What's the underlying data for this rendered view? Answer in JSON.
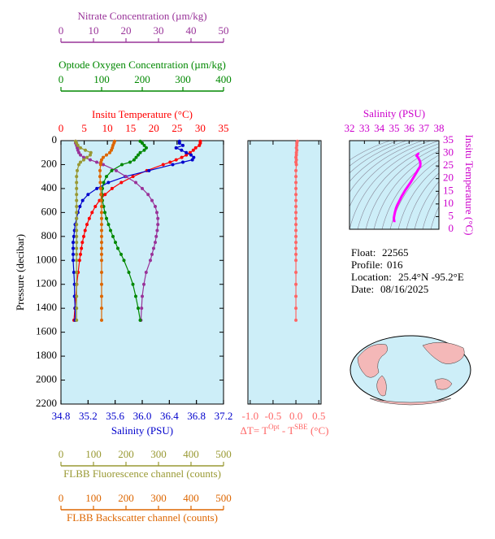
{
  "chart_data": [
    {
      "type": "profile",
      "ylabel": "Pressure (decibar)",
      "ylim": [
        0,
        2200
      ],
      "yticks": [
        0,
        200,
        400,
        600,
        800,
        1000,
        1200,
        1400,
        1600,
        1800,
        2000,
        2200
      ],
      "pressure": [
        5,
        20,
        40,
        60,
        80,
        100,
        120,
        140,
        160,
        180,
        200,
        250,
        300,
        350,
        400,
        450,
        500,
        550,
        600,
        650,
        700,
        750,
        800,
        850,
        900,
        950,
        1000,
        1100,
        1200,
        1300,
        1400,
        1500
      ],
      "axes": [
        {
          "label": "Nitrate Concentration (µm/kg)",
          "color": "#993399",
          "xlim": [
            0,
            50
          ],
          "xticks": [
            0,
            10,
            20,
            30,
            40,
            50
          ]
        },
        {
          "label": "Optode Oxygen Concentration (µm/kg)",
          "color": "#008800",
          "xlim": [
            0,
            400
          ],
          "xticks": [
            0,
            100,
            200,
            300,
            400
          ]
        },
        {
          "label": "Insitu Temperature (°C)",
          "color": "#ff0000",
          "xlim": [
            0,
            35
          ],
          "xticks": [
            0,
            5,
            10,
            15,
            20,
            25,
            30,
            35
          ]
        },
        {
          "label": "Salinity (PSU)",
          "color": "#0000cc",
          "xlim": [
            34.8,
            37.2
          ],
          "xticks": [
            34.8,
            35.2,
            35.6,
            {
              "value": 36,
              "label": "36.0"
            },
            36.4,
            36.8,
            37.2
          ]
        },
        {
          "label": "FLBB Fluorescence channel (counts)",
          "color": "#999933",
          "xlim": [
            0,
            500
          ],
          "xticks": [
            0,
            100,
            200,
            300,
            400,
            500
          ]
        },
        {
          "label": "FLBB Backscatter channel (counts)",
          "color": "#dd6600",
          "xlim": [
            0,
            500
          ],
          "xticks": [
            0,
            100,
            200,
            300,
            400,
            500
          ]
        }
      ],
      "series": [
        {
          "axis": 2,
          "values": [
            30.0,
            30.0,
            29.8,
            29.0,
            28.5,
            27.8,
            27.0,
            26.0,
            24.8,
            23.5,
            22.0,
            18.5,
            15.5,
            13.0,
            11.0,
            9.5,
            8.3,
            7.4,
            6.7,
            6.1,
            5.6,
            5.2,
            4.9,
            4.6,
            4.4,
            4.2,
            4.0,
            3.7,
            3.4,
            3.2,
            3.0,
            2.8
          ]
        },
        {
          "axis": 3,
          "values": [
            36.55,
            36.55,
            36.6,
            36.5,
            36.58,
            36.65,
            36.72,
            36.76,
            36.74,
            36.6,
            36.45,
            36.1,
            35.75,
            35.5,
            35.33,
            35.2,
            35.12,
            35.08,
            35.05,
            35.03,
            35.01,
            35.0,
            34.99,
            34.98,
            34.98,
            34.98,
            34.98,
            34.99,
            35.0,
            35.0,
            35.01,
            35.01
          ]
        },
        {
          "axis": 0,
          "values": [
            4.5,
            4.5,
            4.8,
            5.0,
            5.2,
            5.5,
            6,
            7,
            9,
            11,
            13,
            17,
            20,
            23,
            25,
            26.8,
            28,
            29,
            29.5,
            29.8,
            29.8,
            29.6,
            29.3,
            29,
            28.5,
            28,
            27.5,
            26.2,
            25.5,
            25.0,
            24.8,
            24.6
          ]
        },
        {
          "axis": 1,
          "values": [
            195,
            200,
            205,
            210,
            205,
            195,
            190,
            185,
            180,
            170,
            150,
            125,
            112,
            105,
            102,
            101,
            102,
            105,
            108,
            112,
            117,
            122,
            128,
            134,
            140,
            148,
            155,
            167,
            177,
            184,
            190,
            195
          ]
        },
        {
          "axis": 4,
          "values": [
            45,
            48,
            52,
            60,
            75,
            92,
            90,
            80,
            70,
            60,
            55,
            50,
            48,
            48,
            48,
            48,
            48,
            48,
            48,
            48,
            48,
            48,
            48,
            48,
            48,
            48,
            48,
            48,
            48,
            48,
            48,
            48
          ]
        },
        {
          "axis": 5,
          "values": [
            165,
            163,
            160,
            158,
            155,
            150,
            140,
            130,
            125,
            123,
            122,
            120,
            120,
            121,
            122,
            123,
            124,
            125,
            125,
            125,
            125,
            125,
            125,
            125,
            125,
            125,
            125,
            125,
            125,
            125,
            125,
            125
          ]
        }
      ]
    },
    {
      "type": "profile",
      "color": "#ff6666",
      "xlabel": [
        "ΔT= T",
        "Opt",
        " - T",
        "SBE",
        " (°C)"
      ],
      "xlim": [
        -1.05,
        0.55
      ],
      "xticks": [
        {
          "value": -1,
          "label": "-1.0"
        },
        -0.5,
        {
          "value": 0,
          "label": "0.0"
        },
        0.5
      ],
      "ylim": [
        0,
        2200
      ],
      "pressure": [
        5,
        20,
        40,
        60,
        80,
        100,
        120,
        140,
        160,
        180,
        200,
        250,
        300,
        350,
        400,
        450,
        500,
        550,
        600,
        650,
        700,
        750,
        800,
        850,
        900,
        950,
        1000,
        1100,
        1200,
        1300,
        1400,
        1500
      ],
      "values": [
        0.03,
        0.02,
        0.02,
        0.01,
        0.02,
        0.01,
        0.01,
        0.0,
        0.01,
        0.0,
        0.01,
        0.0,
        0.0,
        0.0,
        0.0,
        0.0,
        0.0,
        0.0,
        0.0,
        0.0,
        0.0,
        0.0,
        0.0,
        0.0,
        0.0,
        0.0,
        0.0,
        0.0,
        0.0,
        0.0,
        0.0,
        0.0
      ]
    },
    {
      "type": "ts",
      "color": "#ff00ff",
      "axis_color": "#cc00cc",
      "xlabel": "Salinity (PSU)",
      "ylabel": "Insitu Temperature (°C)",
      "xlim": [
        32,
        38
      ],
      "xticks": [
        32,
        33,
        34,
        35,
        36,
        37,
        38
      ],
      "ylim": [
        0,
        35
      ],
      "yticks": [
        0,
        5,
        10,
        15,
        20,
        25,
        30,
        35
      ]
    }
  ],
  "float_info": [
    {
      "label": "Float:",
      "value": "22565"
    },
    {
      "label": "Profile:",
      "value": "016"
    },
    {
      "label": "Location:",
      "value": "25.4°N  -95.2°E"
    },
    {
      "label": "Date:",
      "value": "08/16/2025"
    }
  ]
}
